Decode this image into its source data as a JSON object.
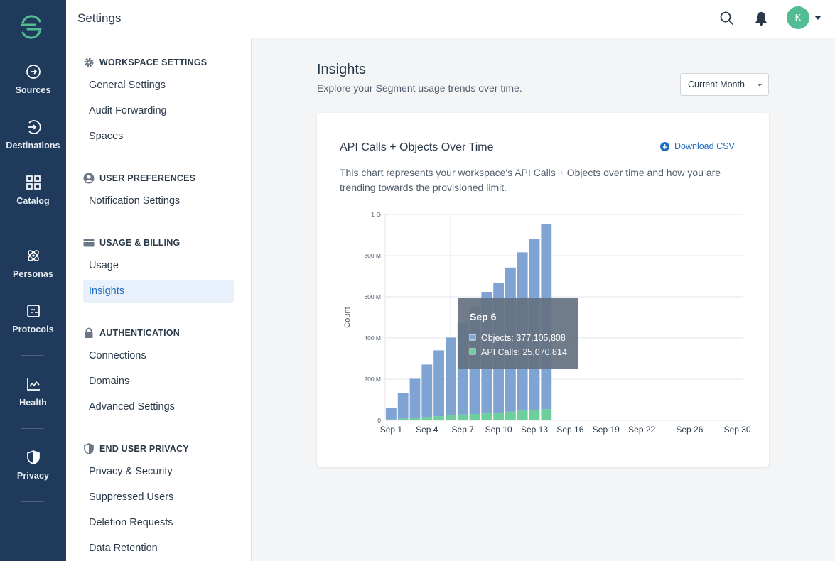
{
  "leftnav": {
    "items": [
      {
        "label": "Sources",
        "icon": "sources-icon"
      },
      {
        "label": "Destinations",
        "icon": "destinations-icon"
      },
      {
        "label": "Catalog",
        "icon": "catalog-icon"
      },
      {
        "label": "Personas",
        "icon": "personas-icon"
      },
      {
        "label": "Protocols",
        "icon": "protocols-icon"
      },
      {
        "label": "Health",
        "icon": "health-icon"
      },
      {
        "label": "Privacy",
        "icon": "privacy-icon"
      }
    ]
  },
  "header": {
    "title": "Settings",
    "avatar_initial": "K"
  },
  "sidebar": {
    "sections": [
      {
        "heading": "WORKSPACE SETTINGS",
        "icon": "gear-icon",
        "items": [
          "General Settings",
          "Audit Forwarding",
          "Spaces"
        ]
      },
      {
        "heading": "USER PREFERENCES",
        "icon": "user-icon",
        "items": [
          "Notification Settings"
        ]
      },
      {
        "heading": "USAGE & BILLING",
        "icon": "credit-card-icon",
        "items": [
          "Usage",
          "Insights"
        ]
      },
      {
        "heading": "AUTHENTICATION",
        "icon": "lock-icon",
        "items": [
          "Connections",
          "Domains",
          "Advanced Settings"
        ]
      },
      {
        "heading": "END USER PRIVACY",
        "icon": "shield-icon",
        "items": [
          "Privacy & Security",
          "Suppressed Users",
          "Deletion Requests",
          "Data Retention"
        ]
      }
    ],
    "active_item": "Insights"
  },
  "main": {
    "title": "Insights",
    "subtitle": "Explore your Segment usage trends over time.",
    "range_select": "Current Month",
    "card": {
      "title": "API Calls + Objects Over Time",
      "download_label": "Download CSV",
      "description": "This chart represents your workspace's API Calls + Objects over time and how you are trending towards the provisioned limit."
    }
  },
  "chart_data": {
    "type": "bar",
    "stacked": true,
    "ylabel": "Count",
    "ylim": [
      0,
      1000000000
    ],
    "y_ticks": [
      {
        "value": 0,
        "label": "0"
      },
      {
        "value": 200000000,
        "label": "200 M"
      },
      {
        "value": 400000000,
        "label": "400 M"
      },
      {
        "value": 600000000,
        "label": "600 M"
      },
      {
        "value": 800000000,
        "label": "800 M"
      },
      {
        "value": 1000000000,
        "label": "1 G"
      }
    ],
    "x_days": [
      1,
      30
    ],
    "x_ticks": [
      {
        "day": 1,
        "label": "Sep 1"
      },
      {
        "day": 4,
        "label": "Sep 4"
      },
      {
        "day": 7,
        "label": "Sep 7"
      },
      {
        "day": 10,
        "label": "Sep 10"
      },
      {
        "day": 13,
        "label": "Sep 13"
      },
      {
        "day": 16,
        "label": "Sep 16"
      },
      {
        "day": 19,
        "label": "Sep 19"
      },
      {
        "day": 22,
        "label": "Sep 22"
      },
      {
        "day": 26,
        "label": "Sep 26"
      },
      {
        "day": 30,
        "label": "Sep 30"
      }
    ],
    "categories": [
      "Sep 1",
      "Sep 2",
      "Sep 3",
      "Sep 4",
      "Sep 5",
      "Sep 6",
      "Sep 7",
      "Sep 8",
      "Sep 9",
      "Sep 10",
      "Sep 11",
      "Sep 12",
      "Sep 13",
      "Sep 14"
    ],
    "series": [
      {
        "name": "Objects",
        "color": "#7fa4d4",
        "values": [
          55000000,
          125000000,
          190000000,
          255000000,
          320000000,
          377105808,
          445000000,
          520000000,
          590000000,
          630000000,
          700000000,
          770000000,
          830000000,
          900000000
        ]
      },
      {
        "name": "API Calls",
        "color": "#6dcf9b",
        "values": [
          4000000,
          8000000,
          12000000,
          16000000,
          20000000,
          25070814,
          28000000,
          31000000,
          34000000,
          38000000,
          42000000,
          46000000,
          50000000,
          54000000
        ]
      }
    ],
    "tooltip": {
      "title": "Sep 6",
      "objects_label": "Objects: 377,105,808",
      "api_calls_label": "API Calls: 25,070,814",
      "day": 6
    },
    "grid": true
  }
}
